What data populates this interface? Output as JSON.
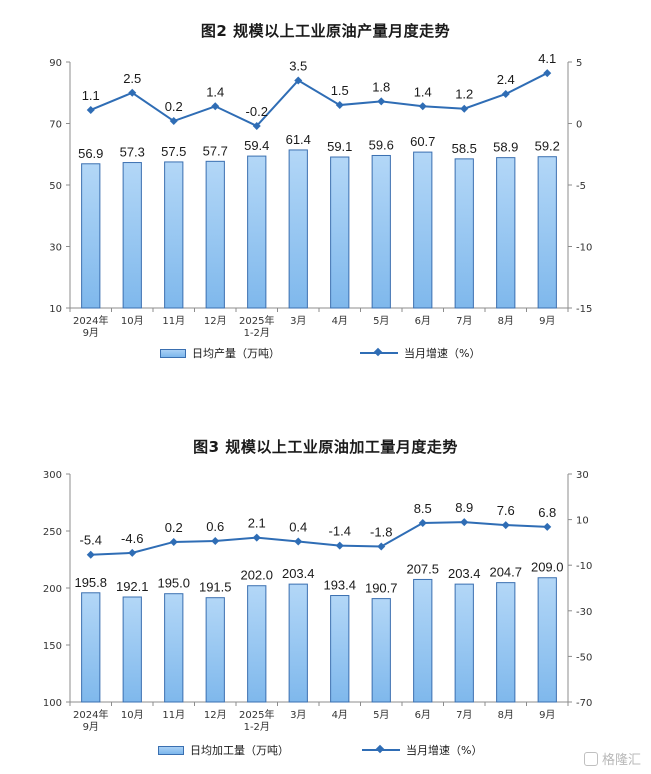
{
  "chart_data": [
    {
      "type": "bar",
      "title": "图2  规模以上工业原油产量月度走势",
      "categories": [
        "2024年\n9月",
        "10月",
        "11月",
        "12月",
        "2025年\n1-2月",
        "3月",
        "4月",
        "5月",
        "6月",
        "7月",
        "8月",
        "9月"
      ],
      "series": [
        {
          "name": "日均产量（万吨）",
          "type": "bar",
          "axis": "left",
          "values": [
            56.9,
            57.3,
            57.5,
            57.7,
            59.4,
            61.4,
            59.1,
            59.6,
            60.7,
            58.5,
            58.9,
            59.2
          ],
          "labels": [
            "56.9",
            "57.3",
            "57.5",
            "57.7",
            "59.4",
            "61.4",
            "59.1",
            "59.6",
            "60.7",
            "58.5",
            "58.9",
            "59.2"
          ]
        },
        {
          "name": "当月增速（%）",
          "type": "line",
          "axis": "right",
          "values": [
            1.1,
            2.5,
            0.2,
            1.4,
            -0.2,
            3.5,
            1.5,
            1.8,
            1.4,
            1.2,
            2.4,
            4.1
          ],
          "labels": [
            "1.1",
            "2.5",
            "0.2",
            "1.4",
            "-0.2",
            "3.5",
            "1.5",
            "1.8",
            "1.4",
            "1.2",
            "2.4",
            "4.1"
          ]
        }
      ],
      "left_axis": {
        "ylim": [
          10,
          90
        ],
        "ticks": [
          "10",
          "30",
          "50",
          "70",
          "90"
        ]
      },
      "right_axis": {
        "ylim": [
          -15,
          5
        ],
        "ticks": [
          "-15",
          "-10",
          "-5",
          "0",
          "5"
        ]
      },
      "legend_position": "bottom",
      "colors": {
        "bar": "#8ec3f0",
        "bar_edge": "#3a6fb0",
        "line": "#2f6db5"
      }
    },
    {
      "type": "bar",
      "title": "图3  规模以上工业原油加工量月度走势",
      "categories": [
        "2024年\n9月",
        "10月",
        "11月",
        "12月",
        "2025年\n1-2月",
        "3月",
        "4月",
        "5月",
        "6月",
        "7月",
        "8月",
        "9月"
      ],
      "series": [
        {
          "name": "日均加工量（万吨）",
          "type": "bar",
          "axis": "left",
          "values": [
            195.8,
            192.1,
            195.0,
            191.5,
            202.0,
            203.4,
            193.4,
            190.7,
            207.5,
            203.4,
            204.7,
            209.0
          ],
          "labels": [
            "195.8",
            "192.1",
            "195.0",
            "191.5",
            "202.0",
            "203.4",
            "193.4",
            "190.7",
            "207.5",
            "203.4",
            "204.7",
            "209.0"
          ]
        },
        {
          "name": "当月增速（%）",
          "type": "line",
          "axis": "right",
          "values": [
            -5.4,
            -4.6,
            0.2,
            0.6,
            2.1,
            0.4,
            -1.4,
            -1.8,
            8.5,
            8.9,
            7.6,
            6.8
          ],
          "labels": [
            "-5.4",
            "-4.6",
            "0.2",
            "0.6",
            "2.1",
            "0.4",
            "-1.4",
            "-1.8",
            "8.5",
            "8.9",
            "7.6",
            "6.8"
          ]
        }
      ],
      "left_axis": {
        "ylim": [
          100,
          300
        ],
        "ticks": [
          "100",
          "150",
          "200",
          "250",
          "300"
        ]
      },
      "right_axis": {
        "ylim": [
          -70,
          30
        ],
        "ticks": [
          "-70",
          "-50",
          "-30",
          "-10",
          "10",
          "30"
        ]
      },
      "legend_position": "bottom",
      "colors": {
        "bar": "#8ec3f0",
        "bar_edge": "#3a6fb0",
        "line": "#2f6db5"
      }
    }
  ],
  "watermark": {
    "text": "格隆汇"
  }
}
